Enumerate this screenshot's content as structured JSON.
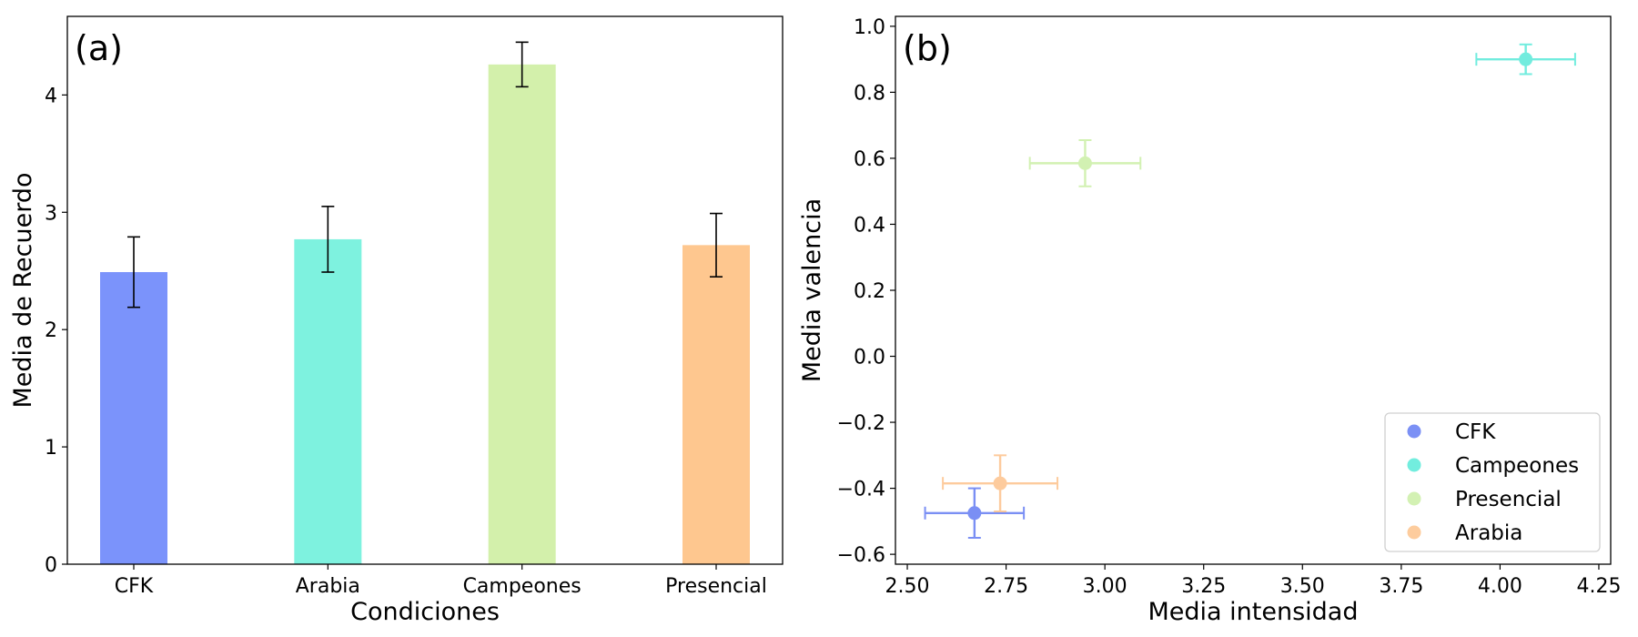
{
  "chart_data": [
    {
      "type": "bar",
      "panel_label": "(a)",
      "title": "",
      "xlabel": "Condiciones",
      "ylabel": "Media de Recuerdo",
      "categories": [
        "CFK",
        "Arabia",
        "Campeones",
        "Presencial"
      ],
      "values": [
        2.49,
        2.77,
        4.26,
        2.72
      ],
      "errors": [
        0.3,
        0.28,
        0.19,
        0.27
      ],
      "colors": [
        "#7b93fb",
        "#7ef2df",
        "#d3f0ab",
        "#fec78f"
      ],
      "ylim": [
        0,
        4.67
      ],
      "yticks": [
        "0",
        "1",
        "2",
        "3",
        "4"
      ],
      "grid": false
    },
    {
      "type": "scatter",
      "panel_label": "(b)",
      "title": "",
      "xlabel": "Media intensidad",
      "ylabel": "Media valencia",
      "xlim": [
        2.47,
        4.28
      ],
      "ylim": [
        -0.63,
        1.03
      ],
      "xticks": [
        "2.50",
        "2.75",
        "3.00",
        "3.25",
        "3.50",
        "3.75",
        "4.00",
        "4.25"
      ],
      "yticks": [
        "−0.6",
        "−0.4",
        "−0.2",
        "0.0",
        "0.2",
        "0.4",
        "0.6",
        "0.8",
        "1.0"
      ],
      "series": [
        {
          "name": "CFK",
          "x": 2.67,
          "y": -0.475,
          "xerr": 0.125,
          "yerr": 0.075,
          "color": "#5a74f2"
        },
        {
          "name": "Campeones",
          "x": 4.065,
          "y": 0.9,
          "xerr": 0.125,
          "yerr": 0.045,
          "color": "#4fe8d6"
        },
        {
          "name": "Presencial",
          "x": 2.95,
          "y": 0.585,
          "xerr": 0.14,
          "yerr": 0.07,
          "color": "#c8eea0"
        },
        {
          "name": "Arabia",
          "x": 2.735,
          "y": -0.385,
          "xerr": 0.145,
          "yerr": 0.085,
          "color": "#fdbf85"
        }
      ],
      "legend_placement": "lower-right",
      "grid": false
    }
  ]
}
